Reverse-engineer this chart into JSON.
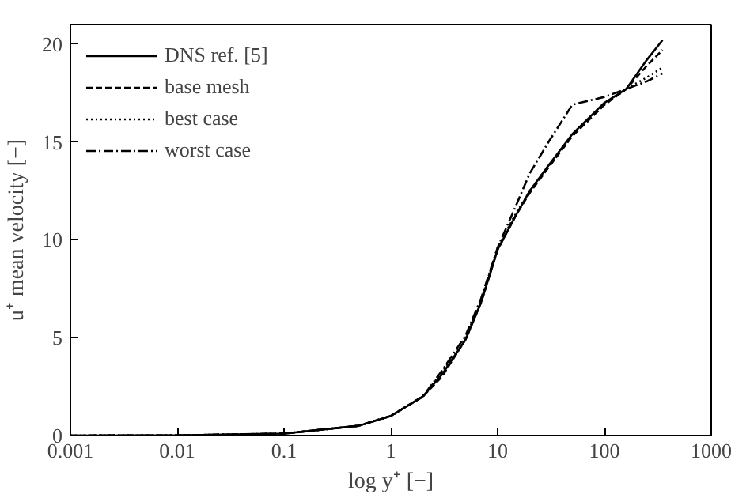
{
  "chart_data": {
    "type": "line",
    "xlabel": "log y⁺ [−]",
    "ylabel": "u⁺ mean velocity [−]",
    "log": "x",
    "grid": false,
    "legend": "top left",
    "marker": "none",
    "xlim": [
      0.001,
      1000
    ],
    "xticks": [
      {
        "value": 0.001,
        "label": "0.001"
      },
      {
        "value": 0.01,
        "label": "0.01"
      },
      {
        "value": 0.1,
        "label": "0.1"
      },
      1,
      10,
      100,
      1000
    ],
    "ylim": [
      0,
      21
    ],
    "yticks": [
      0,
      5,
      10,
      15,
      20
    ],
    "series": [
      {
        "name": "DNS ref. [5]",
        "color": "#000000",
        "line_style": "solid",
        "x": [
          0.001,
          0.01,
          0.1,
          0.5,
          1,
          2,
          3,
          5,
          7,
          10,
          15,
          20,
          30,
          50,
          100,
          160,
          250,
          350
        ],
        "values": [
          0.001,
          0.01,
          0.1,
          0.5,
          1,
          2,
          3.1,
          4.9,
          6.8,
          9.5,
          11.3,
          12.5,
          13.8,
          15.4,
          17,
          17.7,
          19.2,
          20.2
        ]
      },
      {
        "name": "base mesh",
        "color": "#000000",
        "line_style": "dashed",
        "x": [
          0.001,
          0.01,
          0.1,
          0.5,
          1,
          2,
          3,
          5,
          7,
          10,
          15,
          20,
          30,
          50,
          100,
          160,
          250,
          350
        ],
        "values": [
          0.001,
          0.01,
          0.1,
          0.5,
          1,
          2,
          3.0,
          4.9,
          6.8,
          9.5,
          11.3,
          12.4,
          13.7,
          15.3,
          16.9,
          17.7,
          18.9,
          19.7
        ]
      },
      {
        "name": "best case",
        "color": "#000000",
        "line_style": "dotted",
        "x": [
          0.001,
          0.01,
          0.1,
          0.5,
          1,
          2,
          3,
          5,
          7,
          10,
          15,
          20,
          30,
          50,
          100,
          160,
          250,
          350
        ],
        "values": [
          0.001,
          0.01,
          0.1,
          0.5,
          1,
          2,
          3.2,
          5.0,
          6.9,
          9.6,
          11.4,
          12.5,
          13.8,
          15.3,
          16.9,
          17.7,
          18.3,
          18.8
        ]
      },
      {
        "name": "worst case",
        "color": "#000000",
        "line_style": "dashdot",
        "x": [
          0.001,
          0.01,
          0.1,
          0.5,
          1,
          2,
          3,
          5,
          7,
          10,
          15,
          20,
          30,
          50,
          100,
          160,
          250,
          350
        ],
        "values": [
          0.001,
          0.01,
          0.1,
          0.5,
          1,
          2,
          3.3,
          5.1,
          7.0,
          9.6,
          11.8,
          13.4,
          15.0,
          16.9,
          17.3,
          17.7,
          18.1,
          18.5
        ]
      }
    ]
  }
}
